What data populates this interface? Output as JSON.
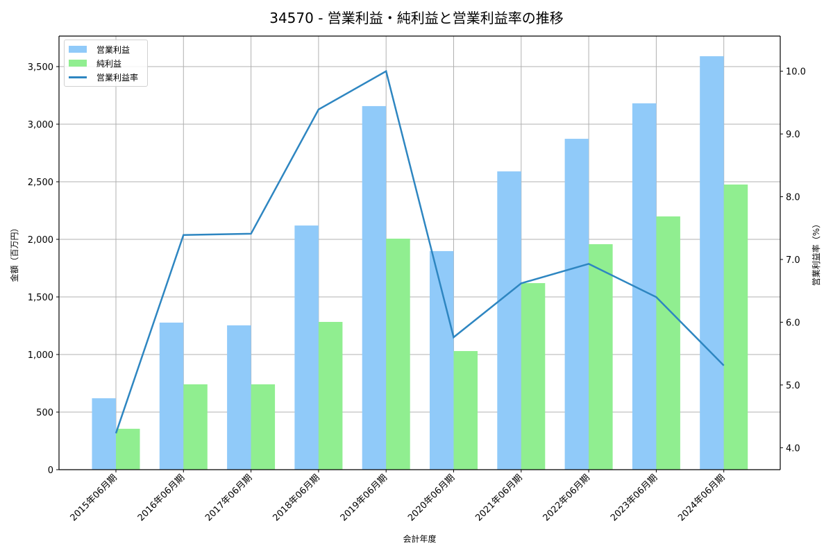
{
  "title": "34570 - 営業利益・純利益と営業利益率の推移",
  "chart_data": {
    "type": "bar",
    "title": "34570 - 営業利益・純利益と営業利益率の推移",
    "xlabel": "会計年度",
    "ylabel": "金額（百万円）",
    "y2label": "営業利益率（%）",
    "categories": [
      "2015年06月期",
      "2016年06月期",
      "2017年06月期",
      "2018年06月期",
      "2019年06月期",
      "2020年06月期",
      "2021年06月期",
      "2022年06月期",
      "2023年06月期",
      "2024年06月期"
    ],
    "series": [
      {
        "name": "営業利益",
        "type": "bar",
        "axis": "left",
        "color": "#90caf9",
        "values": [
          620,
          1277,
          1253,
          2120,
          3157,
          1898,
          2590,
          2873,
          3181,
          3590
        ]
      },
      {
        "name": "純利益",
        "type": "bar",
        "axis": "left",
        "color": "#90ee90",
        "values": [
          355,
          741,
          741,
          1283,
          2006,
          1030,
          1620,
          1958,
          2199,
          2476
        ]
      },
      {
        "name": "営業利益率",
        "type": "line",
        "axis": "right",
        "color": "#2e86c1",
        "values": [
          4.23,
          7.39,
          7.41,
          9.39,
          10.0,
          5.76,
          6.62,
          6.93,
          6.4,
          5.31
        ]
      }
    ],
    "ylim": [
      0,
      3765
    ],
    "y2lim": [
      3.65,
      10.56
    ],
    "yticks": [
      "0",
      "500",
      "1,000",
      "1,500",
      "2,000",
      "2,500",
      "3,000",
      "3,500"
    ],
    "ytick_values": [
      0,
      500,
      1000,
      1500,
      2000,
      2500,
      3000,
      3500
    ],
    "y2ticks": [
      "4.0",
      "5.0",
      "6.0",
      "7.0",
      "8.0",
      "9.0",
      "10.0"
    ],
    "y2tick_values": [
      4,
      5,
      6,
      7,
      8,
      9,
      10
    ],
    "grid": true,
    "legend_position": "upper left"
  },
  "legend": {
    "items": [
      {
        "label": "営業利益",
        "color": "#90caf9",
        "kind": "bar"
      },
      {
        "label": "純利益",
        "color": "#90ee90",
        "kind": "bar"
      },
      {
        "label": "営業利益率",
        "color": "#2e86c1",
        "kind": "line"
      }
    ]
  }
}
